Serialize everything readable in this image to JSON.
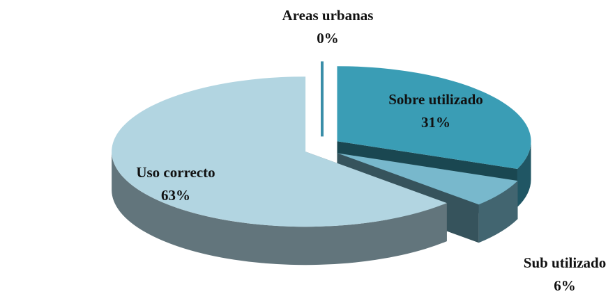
{
  "chart_data": {
    "type": "pie3d",
    "categories": [
      "Areas urbanas",
      "Sobre utilizado",
      "Sub utilizado",
      "Uso correcto"
    ],
    "values": [
      0,
      31,
      6,
      63
    ],
    "value_labels": [
      "0%",
      "31%",
      "6%",
      "63%"
    ],
    "colors": [
      "#3a8ea8",
      "#3a9db5",
      "#78b8cc",
      "#b2d5e1"
    ]
  }
}
